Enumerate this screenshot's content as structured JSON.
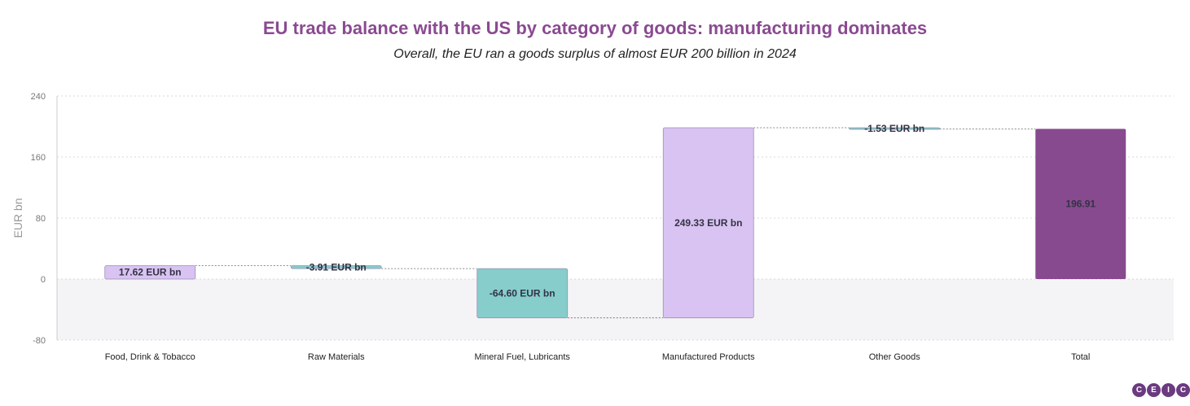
{
  "title": "EU trade balance with the US by category of goods: manufacturing dominates",
  "subtitle": "Overall, the EU ran a goods surplus of almost EUR 200 billion in 2024",
  "logo": [
    "C",
    "E",
    "I",
    "C"
  ],
  "colors": {
    "title": "#8a4a91",
    "positive": "#d9c3f2",
    "negative": "#86cdcc",
    "total": "#874a8f",
    "negative_band": "#f4f4f7",
    "grid": "#d9d9d9"
  },
  "chart_data": {
    "type": "bar",
    "subtype": "waterfall",
    "ylabel": "EUR bn",
    "ylim": [
      -80,
      240
    ],
    "yticks": [
      240,
      160,
      80,
      0,
      -80
    ],
    "grid": true,
    "categories": [
      "Food, Drink & Tobacco",
      "Raw Materials",
      "Mineral Fuel, Lubricants",
      "Manufactured Products",
      "Other Goods",
      "Total"
    ],
    "values": [
      17.62,
      -3.91,
      -64.6,
      249.33,
      -1.53,
      196.91
    ],
    "is_total": [
      false,
      false,
      false,
      false,
      false,
      true
    ],
    "labels": [
      "17.62 EUR bn",
      "-3.91 EUR bn",
      "-64.60 EUR bn",
      "249.33 EUR bn",
      "-1.53 EUR bn",
      "196.91"
    ]
  }
}
